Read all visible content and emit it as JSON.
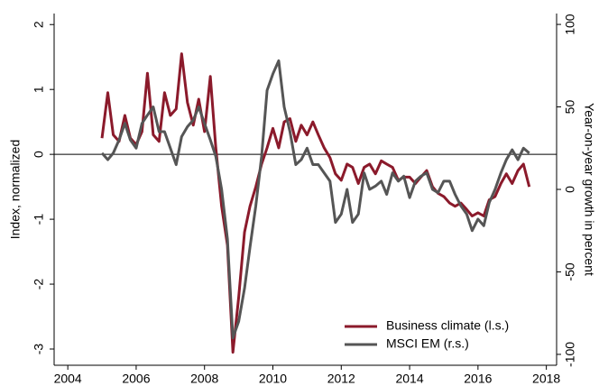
{
  "chart_data": {
    "type": "line",
    "ylabel": "Index, normalized",
    "y2label": "Year-on-year growth in percent",
    "xlim": [
      2003.6,
      2018.3
    ],
    "xticks": [
      2004,
      2006,
      2008,
      2010,
      2012,
      2014,
      2016,
      2018
    ],
    "ylim": [
      -3.25,
      2.17
    ],
    "yticks": [
      -3,
      -2,
      -1,
      0,
      1,
      2
    ],
    "y2lim": [
      -106.6,
      106.6
    ],
    "y2ticks": [
      -100,
      -50,
      0,
      50,
      100
    ],
    "hline": 0,
    "legend": "lower right",
    "x": [
      2005.0,
      2005.17,
      2005.33,
      2005.5,
      2005.67,
      2005.83,
      2006.0,
      2006.17,
      2006.33,
      2006.5,
      2006.67,
      2006.83,
      2007.0,
      2007.17,
      2007.33,
      2007.5,
      2007.67,
      2007.83,
      2008.0,
      2008.17,
      2008.33,
      2008.5,
      2008.67,
      2008.83,
      2009.0,
      2009.17,
      2009.33,
      2009.5,
      2009.67,
      2009.83,
      2010.0,
      2010.17,
      2010.33,
      2010.5,
      2010.67,
      2010.83,
      2011.0,
      2011.17,
      2011.33,
      2011.5,
      2011.67,
      2011.83,
      2012.0,
      2012.17,
      2012.33,
      2012.5,
      2012.67,
      2012.83,
      2013.0,
      2013.17,
      2013.33,
      2013.5,
      2013.67,
      2013.83,
      2014.0,
      2014.17,
      2014.33,
      2014.5,
      2014.67,
      2014.83,
      2015.0,
      2015.17,
      2015.33,
      2015.5,
      2015.67,
      2015.83,
      2016.0,
      2016.17,
      2016.33,
      2016.5,
      2016.67,
      2016.83,
      2017.0,
      2017.17,
      2017.33,
      2017.5
    ],
    "series": [
      {
        "name": "Business climate (l.s.)",
        "color": "#8b1a2b",
        "axis": "y",
        "values": [
          0.25,
          0.95,
          0.3,
          0.2,
          0.6,
          0.25,
          0.15,
          0.35,
          1.25,
          0.3,
          0.2,
          0.95,
          0.6,
          0.7,
          1.55,
          0.8,
          0.45,
          0.85,
          0.35,
          1.2,
          0.1,
          -0.8,
          -1.4,
          -3.05,
          -2.2,
          -1.2,
          -0.8,
          -0.5,
          -0.15,
          0.1,
          0.4,
          0.1,
          0.5,
          0.55,
          0.2,
          0.45,
          0.3,
          0.5,
          0.3,
          0.1,
          -0.05,
          -0.3,
          -0.4,
          -0.15,
          -0.2,
          -0.45,
          -0.2,
          -0.15,
          -0.3,
          -0.1,
          -0.15,
          -0.2,
          -0.4,
          -0.35,
          -0.35,
          -0.45,
          -0.35,
          -0.25,
          -0.5,
          -0.6,
          -0.65,
          -0.75,
          -0.8,
          -0.75,
          -0.85,
          -0.95,
          -0.9,
          -0.95,
          -0.7,
          -0.65,
          -0.45,
          -0.3,
          -0.45,
          -0.25,
          -0.15,
          -0.5
        ]
      },
      {
        "name": "MSCI EM (r.s.)",
        "color": "#555555",
        "axis": "y2",
        "values": [
          22,
          18,
          22,
          30,
          40,
          30,
          25,
          40,
          45,
          50,
          35,
          35,
          25,
          15,
          32,
          38,
          42,
          50,
          40,
          30,
          20,
          0,
          -30,
          -90,
          -80,
          -60,
          -35,
          -10,
          20,
          60,
          70,
          78,
          50,
          35,
          15,
          18,
          25,
          15,
          15,
          10,
          5,
          -20,
          -15,
          0,
          -20,
          -15,
          10,
          0,
          2,
          5,
          -3,
          10,
          5,
          8,
          -5,
          5,
          8,
          10,
          0,
          -2,
          5,
          5,
          -3,
          -10,
          -15,
          -25,
          -18,
          -22,
          -8,
          0,
          10,
          18,
          24,
          18,
          25,
          22
        ]
      }
    ]
  }
}
